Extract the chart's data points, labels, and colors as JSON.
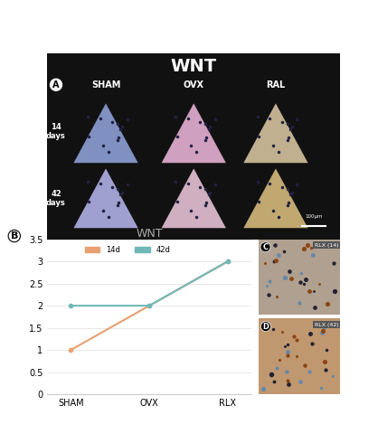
{
  "title_top": "WNT",
  "title_top_color": "#ffffff",
  "title_top_bg": "#1a1a1a",
  "panel_A_label": "A",
  "panel_B_label": "B",
  "panel_C_label": "C",
  "panel_D_label": "D",
  "col_labels": [
    "SHAM",
    "OVX",
    "RAL"
  ],
  "row_labels": [
    "14\ndays",
    "42\ndays"
  ],
  "chart_title": "WNT",
  "chart_title_color": "#aaaaaa",
  "x_labels": [
    "SHAM",
    "OVX",
    "RLX"
  ],
  "y_min": 0,
  "y_max": 3.5,
  "y_ticks": [
    0,
    0.5,
    1,
    1.5,
    2,
    2.5,
    3,
    3.5
  ],
  "line_14d_values": [
    1,
    2,
    3
  ],
  "line_42d_values": [
    2,
    2,
    3
  ],
  "line_14d_color": "#e8a070",
  "line_42d_color": "#70b8b8",
  "legend_14d": "14d",
  "legend_42d": "42d",
  "panel_c_label": "RLX (14)",
  "panel_d_label": "RLX (42)",
  "bg_color_top": "#111111",
  "bg_color_bottom": "#ffffff",
  "panel_img_bg": "#111111"
}
